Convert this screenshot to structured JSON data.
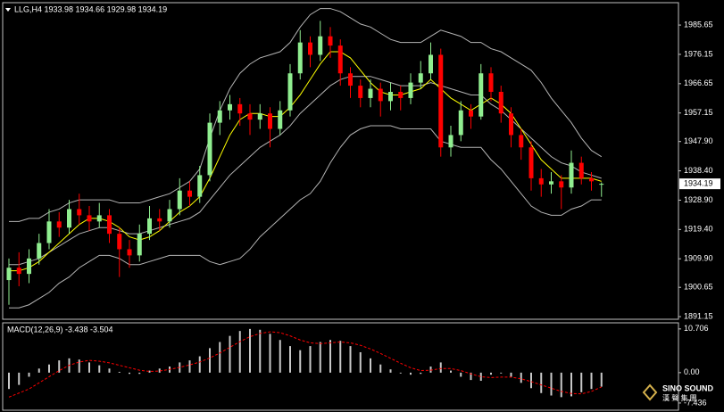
{
  "chart_data": [
    {
      "type": "candlestick",
      "title": "LLG,H4 1933.98 1934.66 1929.98 1934.19",
      "open": [
        1903,
        1907,
        1905,
        1910,
        1915,
        1922,
        1920,
        1926,
        1924,
        1922,
        1924,
        1918,
        1913,
        1911,
        1918,
        1923,
        1922,
        1926,
        1932,
        1930,
        1937,
        1954,
        1958,
        1960,
        1957,
        1955,
        1957,
        1952,
        1958,
        1970,
        1980,
        1976,
        1982,
        1979,
        1970,
        1966,
        1962,
        1965,
        1961,
        1964,
        1962,
        1967,
        1970,
        1976,
        1946,
        1950,
        1958,
        1956,
        1970,
        1964,
        1957,
        1950,
        1946,
        1936,
        1934,
        1935,
        1933,
        1941,
        1936,
        1933.98
      ],
      "high": [
        1910,
        1912,
        1913,
        1918,
        1926,
        1925,
        1929,
        1931,
        1927,
        1928,
        1926,
        1920,
        1916,
        1921,
        1927,
        1926,
        1929,
        1936,
        1935,
        1940,
        1957,
        1961,
        1963,
        1962,
        1960,
        1960,
        1959,
        1961,
        1973,
        1984,
        1982,
        1987,
        1985,
        1981,
        1972,
        1968,
        1968,
        1967,
        1967,
        1966,
        1970,
        1974,
        1980,
        1978,
        1953,
        1961,
        1960,
        1973,
        1972,
        1966,
        1959,
        1952,
        1948,
        1939,
        1938,
        1937,
        1945,
        1943,
        1938,
        1934.66
      ],
      "low": [
        1895,
        1901,
        1902,
        1908,
        1913,
        1917,
        1918,
        1921,
        1919,
        1920,
        1915,
        1904,
        1907,
        1909,
        1916,
        1919,
        1920,
        1924,
        1927,
        1928,
        1935,
        1950,
        1955,
        1953,
        1950,
        1952,
        1946,
        1950,
        1956,
        1968,
        1972,
        1974,
        1975,
        1966,
        1962,
        1959,
        1959,
        1956,
        1958,
        1958,
        1960,
        1965,
        1968,
        1943,
        1943,
        1948,
        1952,
        1955,
        1961,
        1954,
        1946,
        1942,
        1932,
        1930,
        1931,
        1926,
        1931,
        1934,
        1932,
        1929.98
      ],
      "close": [
        1907,
        1905,
        1910,
        1915,
        1922,
        1920,
        1926,
        1924,
        1922,
        1924,
        1918,
        1913,
        1911,
        1918,
        1923,
        1922,
        1926,
        1932,
        1930,
        1937,
        1954,
        1958,
        1960,
        1957,
        1955,
        1957,
        1952,
        1958,
        1970,
        1980,
        1976,
        1982,
        1979,
        1970,
        1966,
        1962,
        1965,
        1961,
        1964,
        1962,
        1967,
        1970,
        1976,
        1946,
        1950,
        1958,
        1956,
        1970,
        1964,
        1957,
        1950,
        1946,
        1936,
        1934,
        1935,
        1933,
        1941,
        1936,
        1935,
        1934.19
      ],
      "up_color": "#90ee90",
      "down_color": "#ff0000",
      "overlays": [
        {
          "color": "#b4b4b4",
          "values": [
            1922,
            1922,
            1923,
            1923,
            1925,
            1926,
            1928,
            1929,
            1929,
            1929,
            1929,
            1928,
            1928,
            1928,
            1929,
            1930,
            1931,
            1933,
            1935,
            1939,
            1949,
            1958,
            1965,
            1970,
            1973,
            1975,
            1976,
            1977,
            1980,
            1985,
            1989,
            1991,
            1991,
            1990,
            1988,
            1986,
            1985,
            1983,
            1981,
            1980,
            1980,
            1980,
            1982,
            1984,
            1983,
            1982,
            1980,
            1980,
            1978,
            1977,
            1975,
            1973,
            1971,
            1967,
            1962,
            1958,
            1954,
            1949,
            1945,
            1943
          ]
        },
        {
          "color": "#b4b4b4",
          "values": [
            1908,
            1908,
            1909,
            1910,
            1912,
            1914,
            1916,
            1918,
            1919,
            1920,
            1920,
            1919,
            1918,
            1918,
            1919,
            1920,
            1921,
            1922,
            1923,
            1925,
            1929,
            1933,
            1937,
            1940,
            1943,
            1946,
            1948,
            1950,
            1953,
            1957,
            1960,
            1963,
            1966,
            1968,
            1969,
            1969,
            1969,
            1968,
            1967,
            1966,
            1966,
            1966,
            1967,
            1966,
            1965,
            1964,
            1963,
            1963,
            1960,
            1958,
            1955,
            1952,
            1949,
            1946,
            1943,
            1941,
            1940,
            1938,
            1937,
            1936
          ]
        },
        {
          "color": "#b4b4b4",
          "values": [
            1894,
            1894,
            1895,
            1897,
            1899,
            1902,
            1904,
            1907,
            1909,
            1911,
            1911,
            1910,
            1908,
            1908,
            1909,
            1910,
            1911,
            1911,
            1911,
            1911,
            1909,
            1908,
            1909,
            1910,
            1913,
            1917,
            1920,
            1923,
            1926,
            1929,
            1931,
            1935,
            1941,
            1946,
            1950,
            1952,
            1953,
            1953,
            1953,
            1952,
            1952,
            1952,
            1952,
            1948,
            1947,
            1946,
            1946,
            1946,
            1942,
            1939,
            1935,
            1931,
            1927,
            1925,
            1924,
            1924,
            1926,
            1927,
            1929,
            1929
          ]
        },
        {
          "color": "#ffff00",
          "values": [
            1906,
            1906,
            1907,
            1909,
            1912,
            1915,
            1918,
            1921,
            1923,
            1923,
            1922,
            1920,
            1917,
            1916,
            1917,
            1919,
            1922,
            1925,
            1927,
            1930,
            1936,
            1943,
            1950,
            1955,
            1957,
            1957,
            1956,
            1956,
            1959,
            1963,
            1968,
            1973,
            1977,
            1977,
            1975,
            1971,
            1967,
            1964,
            1963,
            1963,
            1964,
            1965,
            1968,
            1965,
            1962,
            1960,
            1958,
            1960,
            1962,
            1960,
            1957,
            1952,
            1947,
            1942,
            1939,
            1936,
            1936,
            1936,
            1936,
            1935
          ]
        }
      ],
      "ylim": [
        1890.3,
        1992.9
      ],
      "yticks": [
        1985.65,
        1976.15,
        1966.65,
        1957.15,
        {
          "value": 1947.9,
          "label": "1947.90"
        },
        {
          "value": 1938.4,
          "label": "1938.40"
        },
        {
          "value": 1928.9,
          "label": "1928.90"
        },
        {
          "value": 1919.4,
          "label": "1919.40"
        },
        {
          "value": 1909.9,
          "label": "1909.90"
        },
        1900.65,
        1891.15
      ]
    },
    {
      "type": "macd",
      "title": "MACD(12,26,9) -3.438 -3.504",
      "values": [
        -4,
        -3,
        -1,
        1,
        2,
        3,
        3.5,
        3.2,
        2.5,
        1.8,
        1,
        0.2,
        -0.3,
        -0.3,
        0.5,
        1,
        1.5,
        2.5,
        3,
        4,
        6,
        7.5,
        9,
        10.2,
        10.7,
        10.5,
        9.5,
        8,
        6.5,
        5.5,
        6.5,
        7.5,
        8,
        7.8,
        6.5,
        5,
        3.5,
        2,
        0.8,
        -0.2,
        -0.5,
        -0.3,
        1.5,
        2.5,
        0.5,
        -1,
        -1.8,
        -2,
        -0.5,
        -0.2,
        -1,
        -2.5,
        -3.8,
        -5,
        -5.6,
        -6,
        -5.8,
        -4.8,
        -4,
        -3.438
      ],
      "color": "#c8c8c8",
      "signal": {
        "color": "#ff0000",
        "values": [
          -6,
          -5,
          -4,
          -2.5,
          -1,
          0.5,
          1.8,
          2.6,
          3,
          2.8,
          2.4,
          1.8,
          1.2,
          0.6,
          0.3,
          0.4,
          0.8,
          1.3,
          1.9,
          2.6,
          3.6,
          4.8,
          6.2,
          7.6,
          8.8,
          9.6,
          10,
          9.8,
          9,
          8,
          7.3,
          7.1,
          7.3,
          7.5,
          7.3,
          6.7,
          5.8,
          4.7,
          3.5,
          2.3,
          1.2,
          0.5,
          0.6,
          1,
          1,
          0.5,
          -0.3,
          -1,
          -1.2,
          -1.1,
          -1.1,
          -1.5,
          -2.2,
          -3,
          -3.8,
          -4.6,
          -5.1,
          -5.2,
          -4.6,
          -3.504
        ]
      },
      "ylim": [
        -9.2,
        12.2
      ],
      "yticks": [
        10.706,
        {
          "value": 0,
          "label": "0.00"
        },
        -7.436
      ]
    }
  ],
  "logo": {
    "text": "SINO SOUND",
    "subtext": "漢 聲 集 團"
  }
}
